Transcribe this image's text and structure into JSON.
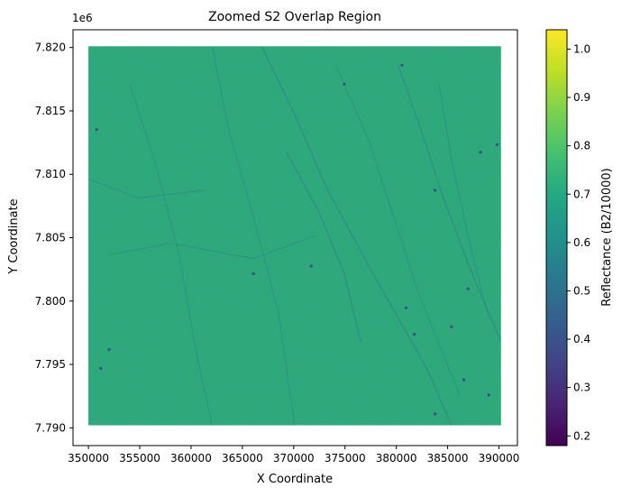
{
  "chart_data": {
    "type": "heatmap",
    "title": "Zoomed S2 Overlap Region",
    "xlabel": "X Coordinate",
    "ylabel": "Y Coordinate",
    "y_offset_label": "1e6",
    "xlim": [
      348500,
      391800
    ],
    "ylim": [
      7.7886,
      7.8214
    ],
    "x_ticks": [
      350000,
      355000,
      360000,
      365000,
      370000,
      375000,
      380000,
      385000,
      390000
    ],
    "x_tick_labels": [
      "350000",
      "355000",
      "360000",
      "365000",
      "370000",
      "375000",
      "380000",
      "385000",
      "390000"
    ],
    "y_ticks": [
      7.79,
      7.795,
      7.8,
      7.805,
      7.81,
      7.815,
      7.82
    ],
    "y_tick_labels": [
      "7.790",
      "7.795",
      "7.800",
      "7.805",
      "7.810",
      "7.815",
      "7.820"
    ],
    "data_extent": {
      "x": [
        350000,
        390200
      ],
      "y": [
        7.7902,
        7.8201
      ]
    },
    "dominant_value": 0.73,
    "value_range": [
      0.18,
      1.04
    ],
    "grid": false,
    "colorbar": {
      "label": "Reflectance (B2/10000)",
      "cmap": "viridis",
      "vmin": 0.18,
      "vmax": 1.04,
      "ticks": [
        0.2,
        0.3,
        0.4,
        0.5,
        0.6,
        0.7,
        0.8,
        0.9,
        1.0
      ],
      "tick_labels": [
        "0.2",
        "0.3",
        "0.4",
        "0.5",
        "0.6",
        "0.7",
        "0.8",
        "0.9",
        "1.0"
      ]
    },
    "colors": {
      "background": "#2ea87b",
      "features": "#2b7f89",
      "dark_features": "#3b3a85"
    }
  }
}
